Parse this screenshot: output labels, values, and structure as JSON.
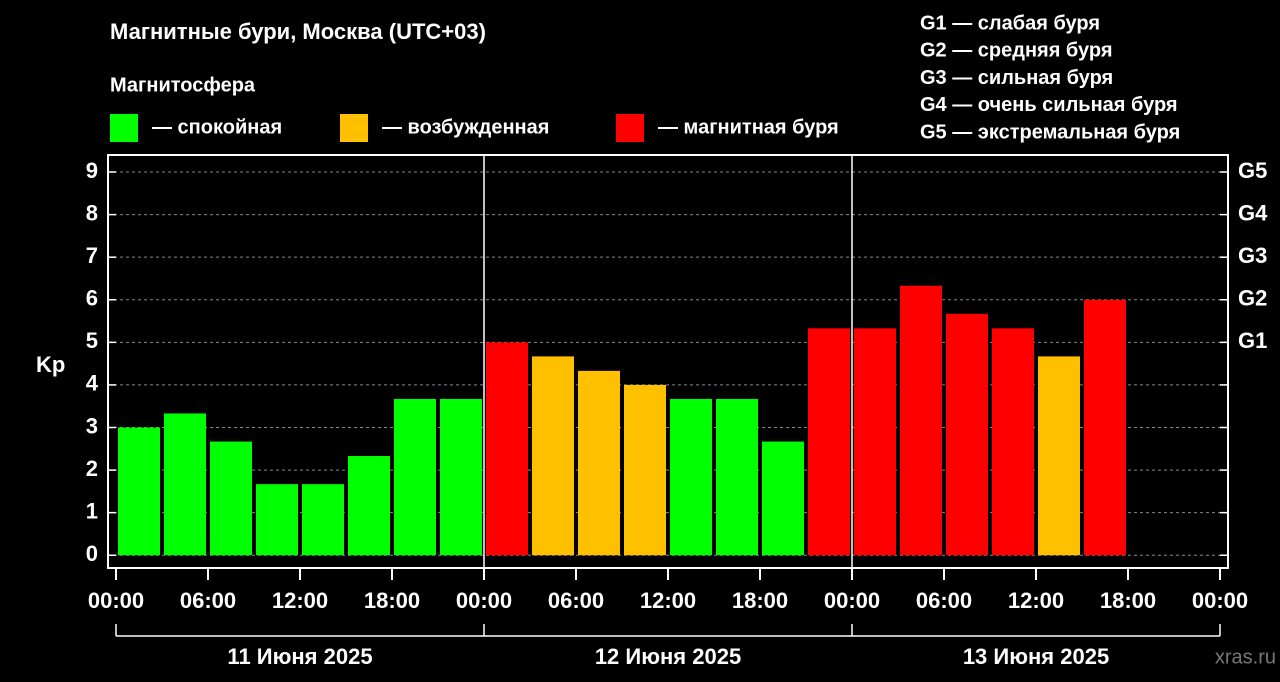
{
  "chart_data": {
    "type": "bar",
    "title": "Магнитные бури, Москва (UTC+03)",
    "legend_title": "Магнитосфера",
    "legend": [
      {
        "name": "— спокойная",
        "color": "#00ff00"
      },
      {
        "name": "— возбужденная",
        "color": "#ffc000"
      },
      {
        "name": "— магнитная буря",
        "color": "#ff0000"
      }
    ],
    "scale_notes": [
      "G1 — слабая буря",
      "G2 — средняя буря",
      "G3 — сильная буря",
      "G4 — очень сильная буря",
      "G5 — экстремальная буря"
    ],
    "y_label": "Kp",
    "x": [
      0,
      3,
      6,
      9,
      12,
      15,
      18,
      21,
      24,
      27,
      30,
      33,
      36,
      39,
      42,
      45,
      48,
      51,
      54,
      57,
      60,
      63
    ],
    "values": [
      3.0,
      3.33,
      2.67,
      1.67,
      1.67,
      2.33,
      3.67,
      3.67,
      5.0,
      4.67,
      4.33,
      4.0,
      3.67,
      3.67,
      2.67,
      5.33,
      5.33,
      6.33,
      5.67,
      5.33,
      4.67,
      6.0
    ],
    "colors": [
      "#00ff00",
      "#00ff00",
      "#00ff00",
      "#00ff00",
      "#00ff00",
      "#00ff00",
      "#00ff00",
      "#00ff00",
      "#ff0000",
      "#ffc000",
      "#ffc000",
      "#ffc000",
      "#00ff00",
      "#00ff00",
      "#00ff00",
      "#ff0000",
      "#ff0000",
      "#ff0000",
      "#ff0000",
      "#ff0000",
      "#ffc000",
      "#ff0000"
    ],
    "xlim": [
      0,
      72
    ],
    "xticks": [
      {
        "value": 0,
        "label": "00:00"
      },
      {
        "value": 6,
        "label": "06:00"
      },
      {
        "value": 12,
        "label": "12:00"
      },
      {
        "value": 18,
        "label": "18:00"
      },
      {
        "value": 24,
        "label": "00:00"
      },
      {
        "value": 30,
        "label": "06:00"
      },
      {
        "value": 36,
        "label": "12:00"
      },
      {
        "value": 42,
        "label": "18:00"
      },
      {
        "value": 48,
        "label": "00:00"
      },
      {
        "value": 54,
        "label": "06:00"
      },
      {
        "value": 60,
        "label": "12:00"
      },
      {
        "value": 66,
        "label": "18:00"
      },
      {
        "value": 72,
        "label": "00:00"
      }
    ],
    "days": [
      "11 Июня 2025",
      "12 Июня 2025",
      "13 Июня 2025"
    ],
    "ylim": [
      -0.3,
      9.4
    ],
    "yticks": [
      0,
      1,
      2,
      3,
      4,
      5,
      6,
      7,
      8,
      9
    ],
    "y2ticks": [
      {
        "value": 5,
        "label": "G1"
      },
      {
        "value": 6,
        "label": "G2"
      },
      {
        "value": 7,
        "label": "G3"
      },
      {
        "value": 8,
        "label": "G4"
      },
      {
        "value": 9,
        "label": "G5"
      }
    ],
    "grid": true,
    "watermark": "xras.ru"
  }
}
